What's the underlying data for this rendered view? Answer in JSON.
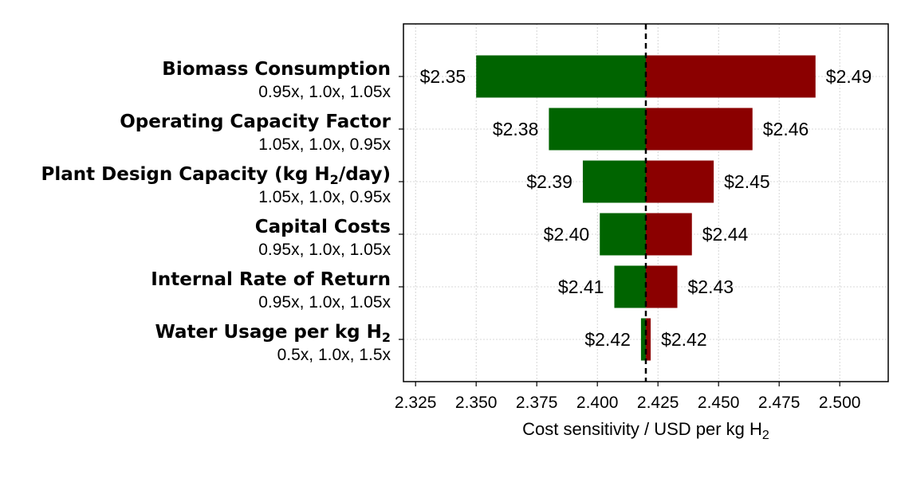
{
  "chart_data": {
    "type": "bar",
    "orientation": "horizontal-tornado",
    "baseline": 2.42,
    "xlabel": "Cost sensitivity / USD per kg H",
    "xlabel_sub": "2",
    "xlim": [
      2.32,
      2.52
    ],
    "xticks": [
      "2.325",
      "2.350",
      "2.375",
      "2.400",
      "2.425",
      "2.450",
      "2.475",
      "2.500"
    ],
    "grid": true,
    "colors": {
      "low": "#006400",
      "high": "#8b0000",
      "baseline": "#000000"
    },
    "items": [
      {
        "name": "Biomass Consumption",
        "name_sub": "",
        "name_tail": "",
        "factors": "0.95x, 1.0x, 1.05x",
        "low": 2.35,
        "high": 2.49,
        "low_label": "$2.35",
        "high_label": "$2.49"
      },
      {
        "name": "Operating Capacity Factor",
        "name_sub": "",
        "name_tail": "",
        "factors": "1.05x, 1.0x, 0.95x",
        "low": 2.38,
        "high": 2.464,
        "low_label": "$2.38",
        "high_label": "$2.46"
      },
      {
        "name": "Plant Design Capacity (kg H",
        "name_sub": "2",
        "name_tail": "/day)",
        "factors": "1.05x, 1.0x, 0.95x",
        "low": 2.394,
        "high": 2.448,
        "low_label": "$2.39",
        "high_label": "$2.45"
      },
      {
        "name": "Capital Costs",
        "name_sub": "",
        "name_tail": "",
        "factors": "0.95x, 1.0x, 1.05x",
        "low": 2.401,
        "high": 2.439,
        "low_label": "$2.40",
        "high_label": "$2.44"
      },
      {
        "name": "Internal Rate of Return",
        "name_sub": "",
        "name_tail": "",
        "factors": "0.95x, 1.0x, 1.05x",
        "low": 2.407,
        "high": 2.433,
        "low_label": "$2.41",
        "high_label": "$2.43"
      },
      {
        "name": "Water Usage per kg H",
        "name_sub": "2",
        "name_tail": "",
        "factors": "0.5x, 1.0x, 1.5x",
        "low": 2.418,
        "high": 2.422,
        "low_label": "$2.42",
        "high_label": "$2.42"
      }
    ]
  }
}
